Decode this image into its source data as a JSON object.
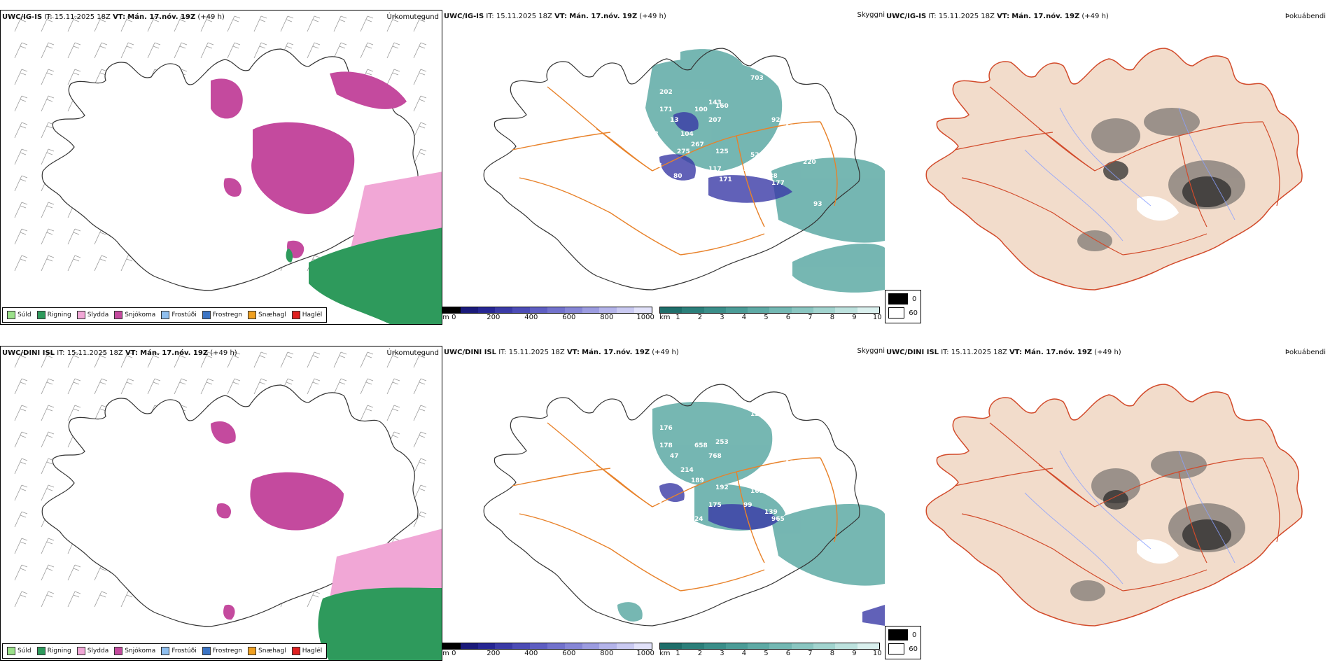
{
  "rows": [
    {
      "model": "UWC/IG-IS",
      "it_label": "IT:",
      "it_value": "15.11.2025 18Z",
      "vt_label": "VT:",
      "vt_value": "Mán. 17.nóv. 19Z",
      "lead": "(+49 h)",
      "panels": {
        "precip": "Úrkomutegund",
        "cloud": "Skyggni",
        "fog": "Þokuábendi"
      },
      "cloud_labels": [
        "202",
        "171",
        "13",
        "100",
        "207",
        "160",
        "703",
        "92",
        "122",
        "104",
        "267",
        "125",
        "524",
        "927",
        "117",
        "55",
        "188",
        "177",
        "103",
        "80",
        "87",
        "171",
        "220",
        "93",
        "275",
        "273",
        "143",
        "133"
      ]
    },
    {
      "model": "UWC/DINI ISL",
      "it_label": "IT:",
      "it_value": "15.11.2025 18Z",
      "vt_label": "VT:",
      "vt_value": "Mán. 17.nóv. 19Z",
      "lead": "(+49 h)",
      "panels": {
        "precip": "Úrkomutegund",
        "cloud": "Skyggni",
        "fog": "Þokuábendi"
      },
      "cloud_labels": [
        "176",
        "178",
        "47",
        "658",
        "768",
        "253",
        "129",
        "93",
        "125",
        "214",
        "189",
        "192",
        "169",
        "95",
        "175",
        "99",
        "139",
        "965",
        "145",
        "134",
        "24"
      ]
    }
  ],
  "precip_legend": [
    {
      "label": "Súld",
      "color": "#9be08a"
    },
    {
      "label": "Rigning",
      "color": "#2e9a5c"
    },
    {
      "label": "Slydda",
      "color": "#f1a7d6"
    },
    {
      "label": "Snjókoma",
      "color": "#c44a9e"
    },
    {
      "label": "Frostúði",
      "color": "#8fbfef"
    },
    {
      "label": "Frostregn",
      "color": "#3b74c4"
    },
    {
      "label": "Snæhagl",
      "color": "#f0a020"
    },
    {
      "label": "Haglél",
      "color": "#e02020"
    }
  ],
  "cloud_base_bar": {
    "unit": "m",
    "ticks": [
      "0",
      "200",
      "400",
      "600",
      "800",
      "1000"
    ],
    "colors": [
      "#000000",
      "#1a1a7a",
      "#262693",
      "#3a3aa6",
      "#4c4cb6",
      "#5e5ec2",
      "#7272cc",
      "#8686d6",
      "#9c9ce0",
      "#b4b4ea",
      "#cacaf2",
      "#e2e2fa"
    ]
  },
  "visibility_bar": {
    "unit": "km",
    "ticks": [
      "1",
      "2",
      "3",
      "4",
      "5",
      "6",
      "7",
      "8",
      "9",
      "10"
    ],
    "colors": [
      "#1e6e6a",
      "#2b7f7a",
      "#3a8e89",
      "#4b9c97",
      "#5eaaa5",
      "#73b8b3",
      "#8ac6c1",
      "#a2d4cf",
      "#bde2de",
      "#daf0ee"
    ]
  },
  "fog_legend": [
    {
      "label": "0",
      "color": "#000000"
    },
    {
      "label": "60",
      "color": "#ffffff"
    }
  ]
}
